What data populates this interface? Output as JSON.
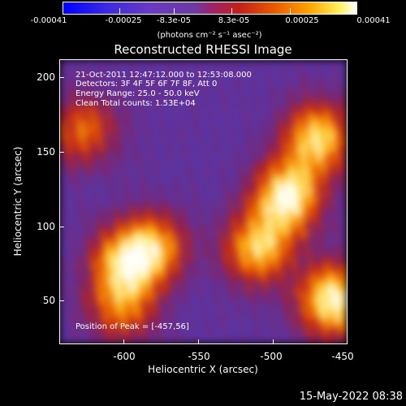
{
  "chart_data": {
    "type": "heatmap",
    "title": "Reconstructed RHESSI Image",
    "xlabel": "Heliocentric X (arcsec)",
    "ylabel": "Heliocentric Y (arcsec)",
    "xlim": [
      -640,
      -450
    ],
    "ylim": [
      20,
      212
    ],
    "x_ticks": [
      "-600",
      "-550",
      "-500",
      "-450"
    ],
    "y_ticks": [
      "200",
      "150",
      "100",
      "50"
    ],
    "colorbar": {
      "ticks": [
        "-0.00041",
        "-0.00025",
        "-8.3e-05",
        "8.3e-05",
        "0.00025",
        "0.00041"
      ],
      "units": "(photons cm⁻² s⁻¹ asec⁻²)",
      "range": [
        -0.00041,
        0.00041
      ]
    },
    "annotations": [
      "21-Oct-2011 12:47:12.000 to 12:53:08.000",
      "Detectors: 3F 4F 5F 6F 7F 8F, Att 0",
      "Energy Range: 25.0 - 50.0 keV",
      "Clean    Total counts: 1.53E+04"
    ],
    "peak": "Position of Peak = [-457,56]",
    "emission_regions": [
      {
        "x": -490,
        "y": 120,
        "intensity": 1.0
      },
      {
        "x": -470,
        "y": 160,
        "intensity": 0.85
      },
      {
        "x": -460,
        "y": 50,
        "intensity": 1.0
      },
      {
        "x": -510,
        "y": 85,
        "intensity": 0.8
      },
      {
        "x": -580,
        "y": 85,
        "intensity": 0.75
      },
      {
        "x": -600,
        "y": 75,
        "intensity": 0.65
      },
      {
        "x": -625,
        "y": 165,
        "intensity": 0.55
      },
      {
        "x": -600,
        "y": 45,
        "intensity": 0.55
      }
    ]
  },
  "timestamp": "15-May-2022 08:38"
}
